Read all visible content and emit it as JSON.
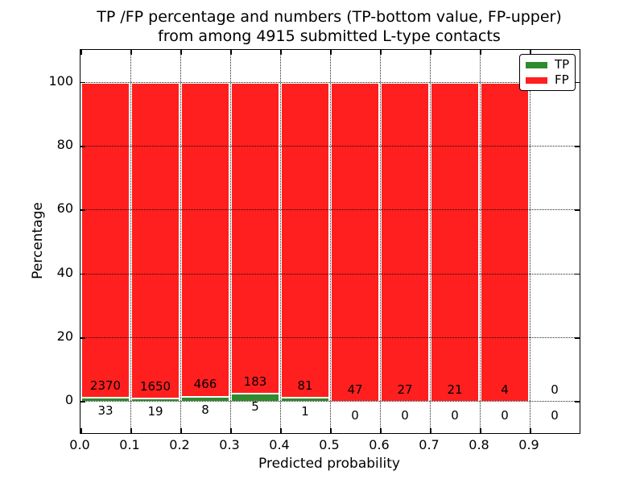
{
  "chart_data": {
    "type": "bar",
    "stacked": true,
    "normalized_to_percent": 100,
    "title_line1": "TP /FP percentage and numbers (TP-bottom value, FP-upper)",
    "title_line2": "from among 4915 submitted L-type contacts",
    "xlabel": "Predicted probability",
    "ylabel": "Percentage",
    "xlim": [
      0.0,
      1.0
    ],
    "ylim": [
      -10,
      110
    ],
    "grid": "dotted",
    "legend_position": "upper right",
    "x_ticks": [
      {
        "value": 0.0,
        "label": "0.0"
      },
      {
        "value": 0.1,
        "label": "0.1"
      },
      {
        "value": 0.2,
        "label": "0.2"
      },
      {
        "value": 0.3,
        "label": "0.3"
      },
      {
        "value": 0.4,
        "label": "0.4"
      },
      {
        "value": 0.5,
        "label": "0.5"
      },
      {
        "value": 0.6,
        "label": "0.6"
      },
      {
        "value": 0.7,
        "label": "0.7"
      },
      {
        "value": 0.8,
        "label": "0.8"
      },
      {
        "value": 0.9,
        "label": "0.9"
      }
    ],
    "y_ticks": [
      {
        "value": 0,
        "label": "0"
      },
      {
        "value": 20,
        "label": "20"
      },
      {
        "value": 40,
        "label": "40"
      },
      {
        "value": 60,
        "label": "60"
      },
      {
        "value": 80,
        "label": "80"
      },
      {
        "value": 100,
        "label": "100"
      }
    ],
    "bins": [
      {
        "range": [
          0.0,
          0.1
        ],
        "tp": 33,
        "fp": 2370
      },
      {
        "range": [
          0.1,
          0.2
        ],
        "tp": 19,
        "fp": 1650
      },
      {
        "range": [
          0.2,
          0.3
        ],
        "tp": 8,
        "fp": 466
      },
      {
        "range": [
          0.3,
          0.4
        ],
        "tp": 5,
        "fp": 183
      },
      {
        "range": [
          0.4,
          0.5
        ],
        "tp": 1,
        "fp": 81
      },
      {
        "range": [
          0.5,
          0.6
        ],
        "tp": 0,
        "fp": 47
      },
      {
        "range": [
          0.6,
          0.7
        ],
        "tp": 0,
        "fp": 27
      },
      {
        "range": [
          0.7,
          0.8
        ],
        "tp": 0,
        "fp": 21
      },
      {
        "range": [
          0.8,
          0.9
        ],
        "tp": 0,
        "fp": 4
      },
      {
        "range": [
          0.9,
          1.0
        ],
        "tp": 0,
        "fp": 0
      }
    ],
    "legend": [
      {
        "label": "TP",
        "color": "#2e8b2e"
      },
      {
        "label": "FP",
        "color": "#ff1f1f"
      }
    ],
    "colors": {
      "tp": "#2e8b2e",
      "fp": "#ff1f1f",
      "bar_edge": "#ffffff",
      "grid": "#000000"
    }
  }
}
